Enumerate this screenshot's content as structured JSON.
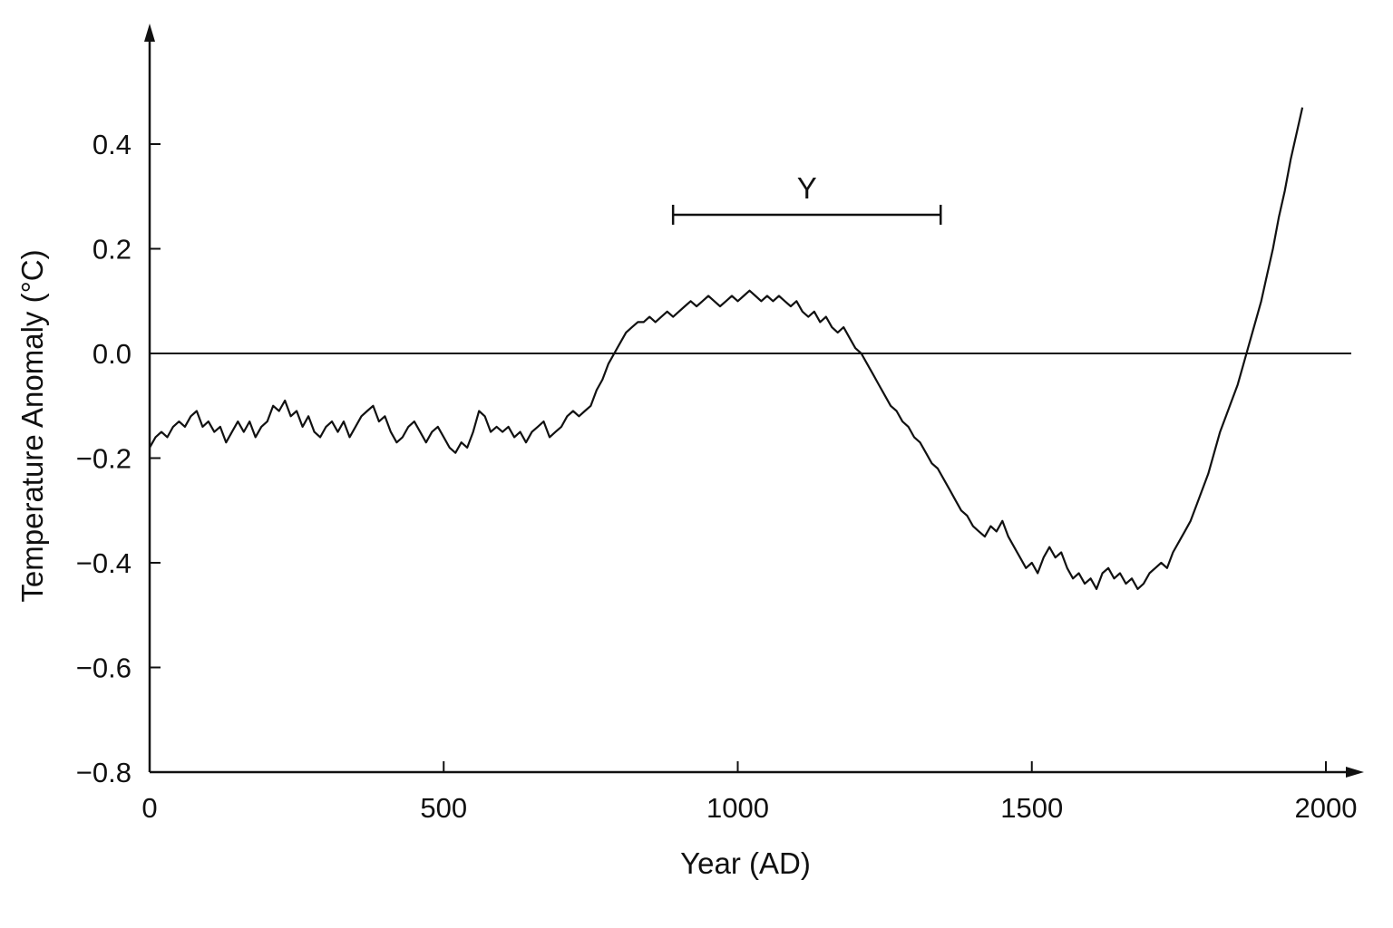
{
  "chart_data": {
    "type": "line",
    "title": "",
    "xlabel": "Year (AD)",
    "ylabel": "Temperature Anomaly (°C)",
    "xlim": [
      0,
      2050
    ],
    "ylim": [
      -0.8,
      0.5
    ],
    "x_ticks": [
      {
        "value": 0,
        "label": "0"
      },
      {
        "value": 500,
        "label": "500"
      },
      {
        "value": 1000,
        "label": "1000"
      },
      {
        "value": 1500,
        "label": "1500"
      },
      {
        "value": 2000,
        "label": "2000"
      }
    ],
    "y_ticks": [
      {
        "value": 0.4,
        "label": "0.4"
      },
      {
        "value": 0.2,
        "label": "0.2"
      },
      {
        "value": 0.0,
        "label": "0.0"
      },
      {
        "value": -0.2,
        "label": "−0.2"
      },
      {
        "value": -0.4,
        "label": "−0.4"
      },
      {
        "value": -0.6,
        "label": "−0.6"
      },
      {
        "value": -0.8,
        "label": "−0.8"
      }
    ],
    "grid": false,
    "reference_line_y": 0.0,
    "annotation": {
      "label": "Y",
      "x_start": 890,
      "x_end": 1345,
      "y": 0.265
    },
    "series": [
      {
        "name": "",
        "color": "#111111",
        "points": [
          [
            0,
            -0.18
          ],
          [
            10,
            -0.16
          ],
          [
            20,
            -0.15
          ],
          [
            30,
            -0.16
          ],
          [
            40,
            -0.14
          ],
          [
            50,
            -0.13
          ],
          [
            60,
            -0.14
          ],
          [
            70,
            -0.12
          ],
          [
            80,
            -0.11
          ],
          [
            90,
            -0.14
          ],
          [
            100,
            -0.13
          ],
          [
            110,
            -0.15
          ],
          [
            120,
            -0.14
          ],
          [
            130,
            -0.17
          ],
          [
            140,
            -0.15
          ],
          [
            150,
            -0.13
          ],
          [
            160,
            -0.15
          ],
          [
            170,
            -0.13
          ],
          [
            180,
            -0.16
          ],
          [
            190,
            -0.14
          ],
          [
            200,
            -0.13
          ],
          [
            210,
            -0.1
          ],
          [
            220,
            -0.11
          ],
          [
            230,
            -0.09
          ],
          [
            240,
            -0.12
          ],
          [
            250,
            -0.11
          ],
          [
            260,
            -0.14
          ],
          [
            270,
            -0.12
          ],
          [
            280,
            -0.15
          ],
          [
            290,
            -0.16
          ],
          [
            300,
            -0.14
          ],
          [
            310,
            -0.13
          ],
          [
            320,
            -0.15
          ],
          [
            330,
            -0.13
          ],
          [
            340,
            -0.16
          ],
          [
            350,
            -0.14
          ],
          [
            360,
            -0.12
          ],
          [
            370,
            -0.11
          ],
          [
            380,
            -0.1
          ],
          [
            390,
            -0.13
          ],
          [
            400,
            -0.12
          ],
          [
            410,
            -0.15
          ],
          [
            420,
            -0.17
          ],
          [
            430,
            -0.16
          ],
          [
            440,
            -0.14
          ],
          [
            450,
            -0.13
          ],
          [
            460,
            -0.15
          ],
          [
            470,
            -0.17
          ],
          [
            480,
            -0.15
          ],
          [
            490,
            -0.14
          ],
          [
            500,
            -0.16
          ],
          [
            510,
            -0.18
          ],
          [
            520,
            -0.19
          ],
          [
            530,
            -0.17
          ],
          [
            540,
            -0.18
          ],
          [
            550,
            -0.15
          ],
          [
            560,
            -0.11
          ],
          [
            570,
            -0.12
          ],
          [
            580,
            -0.15
          ],
          [
            590,
            -0.14
          ],
          [
            600,
            -0.15
          ],
          [
            610,
            -0.14
          ],
          [
            620,
            -0.16
          ],
          [
            630,
            -0.15
          ],
          [
            640,
            -0.17
          ],
          [
            650,
            -0.15
          ],
          [
            660,
            -0.14
          ],
          [
            670,
            -0.13
          ],
          [
            680,
            -0.16
          ],
          [
            690,
            -0.15
          ],
          [
            700,
            -0.14
          ],
          [
            710,
            -0.12
          ],
          [
            720,
            -0.11
          ],
          [
            730,
            -0.12
          ],
          [
            740,
            -0.11
          ],
          [
            750,
            -0.1
          ],
          [
            760,
            -0.07
          ],
          [
            770,
            -0.05
          ],
          [
            780,
            -0.02
          ],
          [
            790,
            0.0
          ],
          [
            800,
            0.02
          ],
          [
            810,
            0.04
          ],
          [
            820,
            0.05
          ],
          [
            830,
            0.06
          ],
          [
            840,
            0.06
          ],
          [
            850,
            0.07
          ],
          [
            860,
            0.06
          ],
          [
            870,
            0.07
          ],
          [
            880,
            0.08
          ],
          [
            890,
            0.07
          ],
          [
            900,
            0.08
          ],
          [
            910,
            0.09
          ],
          [
            920,
            0.1
          ],
          [
            930,
            0.09
          ],
          [
            940,
            0.1
          ],
          [
            950,
            0.11
          ],
          [
            960,
            0.1
          ],
          [
            970,
            0.09
          ],
          [
            980,
            0.1
          ],
          [
            990,
            0.11
          ],
          [
            1000,
            0.1
          ],
          [
            1010,
            0.11
          ],
          [
            1020,
            0.12
          ],
          [
            1030,
            0.11
          ],
          [
            1040,
            0.1
          ],
          [
            1050,
            0.11
          ],
          [
            1060,
            0.1
          ],
          [
            1070,
            0.11
          ],
          [
            1080,
            0.1
          ],
          [
            1090,
            0.09
          ],
          [
            1100,
            0.1
          ],
          [
            1110,
            0.08
          ],
          [
            1120,
            0.07
          ],
          [
            1130,
            0.08
          ],
          [
            1140,
            0.06
          ],
          [
            1150,
            0.07
          ],
          [
            1160,
            0.05
          ],
          [
            1170,
            0.04
          ],
          [
            1180,
            0.05
          ],
          [
            1190,
            0.03
          ],
          [
            1200,
            0.01
          ],
          [
            1210,
            0.0
          ],
          [
            1220,
            -0.02
          ],
          [
            1230,
            -0.04
          ],
          [
            1240,
            -0.06
          ],
          [
            1250,
            -0.08
          ],
          [
            1260,
            -0.1
          ],
          [
            1270,
            -0.11
          ],
          [
            1280,
            -0.13
          ],
          [
            1290,
            -0.14
          ],
          [
            1300,
            -0.16
          ],
          [
            1310,
            -0.17
          ],
          [
            1320,
            -0.19
          ],
          [
            1330,
            -0.21
          ],
          [
            1340,
            -0.22
          ],
          [
            1350,
            -0.24
          ],
          [
            1360,
            -0.26
          ],
          [
            1370,
            -0.28
          ],
          [
            1380,
            -0.3
          ],
          [
            1390,
            -0.31
          ],
          [
            1400,
            -0.33
          ],
          [
            1410,
            -0.34
          ],
          [
            1420,
            -0.35
          ],
          [
            1430,
            -0.33
          ],
          [
            1440,
            -0.34
          ],
          [
            1450,
            -0.32
          ],
          [
            1460,
            -0.35
          ],
          [
            1470,
            -0.37
          ],
          [
            1480,
            -0.39
          ],
          [
            1490,
            -0.41
          ],
          [
            1500,
            -0.4
          ],
          [
            1510,
            -0.42
          ],
          [
            1520,
            -0.39
          ],
          [
            1530,
            -0.37
          ],
          [
            1540,
            -0.39
          ],
          [
            1550,
            -0.38
          ],
          [
            1560,
            -0.41
          ],
          [
            1570,
            -0.43
          ],
          [
            1580,
            -0.42
          ],
          [
            1590,
            -0.44
          ],
          [
            1600,
            -0.43
          ],
          [
            1610,
            -0.45
          ],
          [
            1620,
            -0.42
          ],
          [
            1630,
            -0.41
          ],
          [
            1640,
            -0.43
          ],
          [
            1650,
            -0.42
          ],
          [
            1660,
            -0.44
          ],
          [
            1670,
            -0.43
          ],
          [
            1680,
            -0.45
          ],
          [
            1690,
            -0.44
          ],
          [
            1700,
            -0.42
          ],
          [
            1710,
            -0.41
          ],
          [
            1720,
            -0.4
          ],
          [
            1730,
            -0.41
          ],
          [
            1740,
            -0.38
          ],
          [
            1750,
            -0.36
          ],
          [
            1760,
            -0.34
          ],
          [
            1770,
            -0.32
          ],
          [
            1780,
            -0.29
          ],
          [
            1790,
            -0.26
          ],
          [
            1800,
            -0.23
          ],
          [
            1810,
            -0.19
          ],
          [
            1820,
            -0.15
          ],
          [
            1830,
            -0.12
          ],
          [
            1840,
            -0.09
          ],
          [
            1850,
            -0.06
          ],
          [
            1860,
            -0.02
          ],
          [
            1870,
            0.02
          ],
          [
            1880,
            0.06
          ],
          [
            1890,
            0.1
          ],
          [
            1900,
            0.15
          ],
          [
            1910,
            0.2
          ],
          [
            1920,
            0.26
          ],
          [
            1930,
            0.31
          ],
          [
            1940,
            0.37
          ],
          [
            1950,
            0.42
          ],
          [
            1960,
            0.47
          ]
        ]
      }
    ]
  }
}
